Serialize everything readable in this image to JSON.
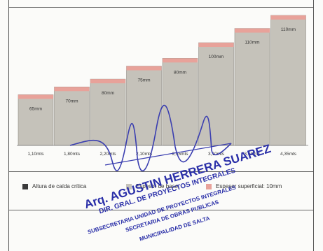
{
  "document": {
    "bar_color": "#c5c2ba",
    "cap_color": "#e8a29a",
    "bars": [
      {
        "height_label": "65mm",
        "x_label": "1,10mts"
      },
      {
        "height_label": "70mm",
        "x_label": "1,80mts"
      },
      {
        "height_label": "80mm",
        "x_label": "2,20mts"
      },
      {
        "height_label": "75mm",
        "x_label": "2,10mts"
      },
      {
        "height_label": "80mm",
        "x_label": "2,55mts"
      },
      {
        "height_label": "100mm",
        "x_label": "3,10mts"
      },
      {
        "height_label": "110mm",
        "x_label": "3,50mts"
      },
      {
        "height_label": "110mm",
        "x_label": "4,35mts"
      }
    ],
    "bar_levels": [
      0.39,
      0.45,
      0.51,
      0.61,
      0.67,
      0.79,
      0.9,
      1.0
    ],
    "legend": {
      "item1_label": "Altura de caída crítica",
      "item1_color": "#3a3a3a",
      "item2_label": "Espesor de base",
      "item2_color": "#c5c2ba",
      "item3_label": "Espesor superficial: 10mm",
      "item3_color": "#e8a29a"
    }
  },
  "stamp": {
    "line1": "Arq. AGUSTIN HERRERA SUAREZ",
    "line2": "DIR. GRAL. DE PROYECTOS INTEGRALES",
    "line3": "SUBSECRETARIA UNIDAD DE PROYECTOS INTEGRALES",
    "line4": "SECRETARIA DE OBRAS PUBLICAS",
    "line5": "MUNICIPALIDAD DE SALTA",
    "color": "#2a2fa8"
  }
}
